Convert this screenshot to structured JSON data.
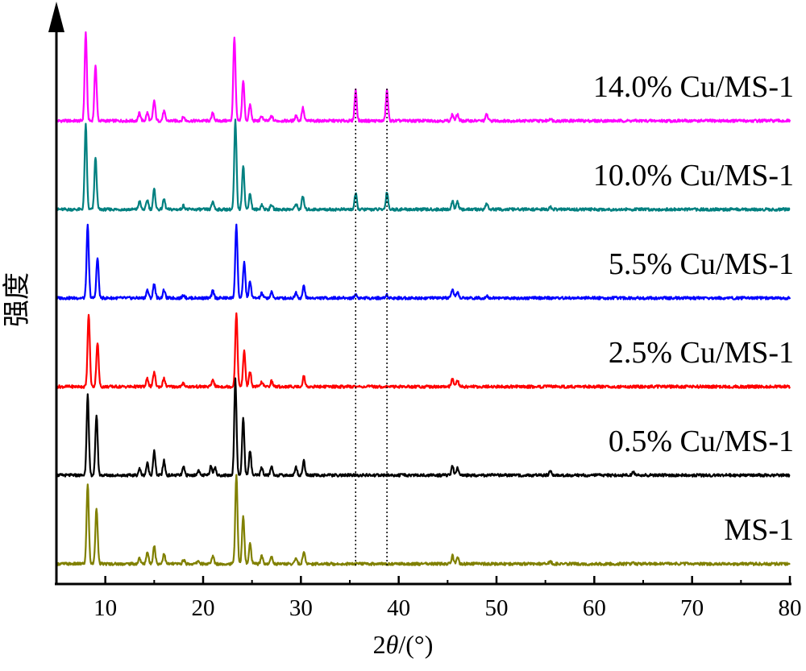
{
  "chart_data": {
    "type": "line",
    "xlabel": "2θ/(°)",
    "xlabel_parts": {
      "pre": "2",
      "italic": "θ",
      "post": "/(°)"
    },
    "ylabel": "强度",
    "xlim": [
      5,
      80
    ],
    "xticks": [
      10,
      20,
      30,
      40,
      50,
      60,
      70,
      80
    ],
    "grid": false,
    "legend": "series labels placed at right above each trace",
    "stacked_offset": true,
    "reference_lines_x": [
      35.6,
      38.8
    ],
    "series": [
      {
        "name": "14.0% Cu/MS-1",
        "color": "#ff00ff",
        "baseline": 5,
        "peaks": [
          [
            8.0,
            11
          ],
          [
            9.0,
            7
          ],
          [
            13.5,
            1
          ],
          [
            14.3,
            1
          ],
          [
            15.0,
            2.5
          ],
          [
            16.0,
            1.2
          ],
          [
            18.0,
            0.5
          ],
          [
            21.0,
            1
          ],
          [
            23.2,
            10.5
          ],
          [
            24.1,
            5
          ],
          [
            24.8,
            2
          ],
          [
            26.0,
            0.6
          ],
          [
            27.0,
            0.6
          ],
          [
            29.5,
            0.7
          ],
          [
            30.2,
            1.6
          ],
          [
            35.6,
            3.8
          ],
          [
            38.8,
            3.8
          ],
          [
            45.5,
            0.8
          ],
          [
            46.0,
            0.8
          ],
          [
            49.0,
            0.8
          ],
          [
            55.5,
            0.3
          ]
        ]
      },
      {
        "name": "10.0% Cu/MS-1",
        "color": "#008080",
        "baseline": 4,
        "peaks": [
          [
            8.0,
            10.5
          ],
          [
            9.0,
            6.5
          ],
          [
            13.5,
            1
          ],
          [
            14.3,
            1.2
          ],
          [
            15.0,
            2.5
          ],
          [
            16.0,
            1.3
          ],
          [
            18.0,
            0.5
          ],
          [
            21.0,
            1
          ],
          [
            23.3,
            11
          ],
          [
            24.1,
            5.5
          ],
          [
            24.8,
            2
          ],
          [
            26.0,
            0.6
          ],
          [
            27.0,
            0.6
          ],
          [
            29.5,
            0.7
          ],
          [
            30.2,
            1.6
          ],
          [
            35.6,
            2
          ],
          [
            38.8,
            2.2
          ],
          [
            45.5,
            1
          ],
          [
            46.0,
            1
          ],
          [
            49.0,
            0.8
          ],
          [
            55.5,
            0.3
          ]
        ]
      },
      {
        "name": "5.5% Cu/MS-1",
        "color": "#0000ff",
        "baseline": 3,
        "peaks": [
          [
            8.2,
            9
          ],
          [
            9.2,
            5
          ],
          [
            14.3,
            1
          ],
          [
            15.0,
            1.8
          ],
          [
            16.0,
            1
          ],
          [
            18.0,
            0.4
          ],
          [
            21.0,
            0.9
          ],
          [
            23.4,
            9
          ],
          [
            24.2,
            4.5
          ],
          [
            24.8,
            2
          ],
          [
            26.0,
            0.6
          ],
          [
            27.0,
            0.7
          ],
          [
            29.5,
            0.7
          ],
          [
            30.3,
            1.5
          ],
          [
            35.6,
            0.5
          ],
          [
            38.8,
            0.4
          ],
          [
            45.5,
            1
          ],
          [
            46.0,
            0.8
          ],
          [
            49.0,
            0.3
          ]
        ]
      },
      {
        "name": "2.5% Cu/MS-1",
        "color": "#ff0000",
        "baseline": 2,
        "peaks": [
          [
            8.3,
            9
          ],
          [
            9.2,
            5.5
          ],
          [
            14.3,
            1
          ],
          [
            15.0,
            1.8
          ],
          [
            16.0,
            1
          ],
          [
            18.0,
            0.4
          ],
          [
            21.0,
            0.9
          ],
          [
            23.4,
            9
          ],
          [
            24.2,
            4.5
          ],
          [
            24.8,
            1.8
          ],
          [
            26.0,
            0.6
          ],
          [
            27.0,
            0.7
          ],
          [
            30.3,
            1.3
          ],
          [
            45.5,
            0.9
          ],
          [
            46.0,
            0.8
          ]
        ]
      },
      {
        "name": "0.5% Cu/MS-1",
        "color": "#000000",
        "baseline": 1,
        "peaks": [
          [
            8.2,
            10
          ],
          [
            9.1,
            7.5
          ],
          [
            13.5,
            0.8
          ],
          [
            14.3,
            1.5
          ],
          [
            15.0,
            3
          ],
          [
            16.0,
            1.8
          ],
          [
            18.0,
            1
          ],
          [
            19.5,
            0.6
          ],
          [
            20.8,
            1.2
          ],
          [
            21.2,
            1
          ],
          [
            23.3,
            12
          ],
          [
            24.1,
            7
          ],
          [
            24.8,
            3
          ],
          [
            26.0,
            1
          ],
          [
            27.0,
            1.1
          ],
          [
            29.5,
            1
          ],
          [
            30.3,
            1.8
          ],
          [
            45.5,
            1.1
          ],
          [
            46.0,
            1
          ],
          [
            55.5,
            0.5
          ],
          [
            64.0,
            0.4
          ]
        ]
      },
      {
        "name": "MS-1",
        "color": "#808000",
        "baseline": 0,
        "peaks": [
          [
            8.2,
            10
          ],
          [
            9.1,
            7
          ],
          [
            13.5,
            0.7
          ],
          [
            14.3,
            1.5
          ],
          [
            15.0,
            2.3
          ],
          [
            16.0,
            1.3
          ],
          [
            18.0,
            0.5
          ],
          [
            19.5,
            0.4
          ],
          [
            21.0,
            1
          ],
          [
            23.4,
            11
          ],
          [
            24.1,
            6
          ],
          [
            24.8,
            2.5
          ],
          [
            26.0,
            1
          ],
          [
            27.0,
            0.9
          ],
          [
            29.5,
            0.7
          ],
          [
            30.3,
            1.5
          ],
          [
            45.5,
            1
          ],
          [
            46.0,
            0.9
          ],
          [
            55.5,
            0.3
          ],
          [
            64.0,
            0.2
          ]
        ]
      }
    ]
  }
}
